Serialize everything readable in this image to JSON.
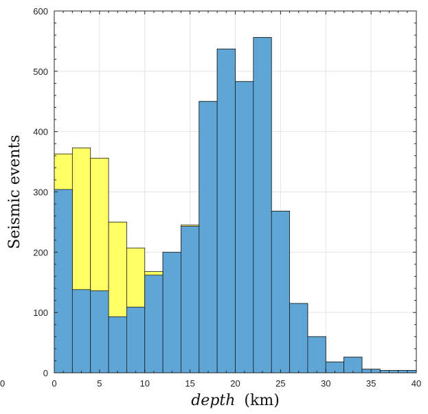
{
  "chart_data": {
    "type": "bar",
    "subtype": "overlaid-histogram",
    "title": "",
    "xlabel_italic": "depth",
    "xlabel_unit": "(km)",
    "ylabel": "Seismic events",
    "xlim": [
      0,
      40
    ],
    "ylim": [
      0,
      600
    ],
    "xticks": [
      0,
      5,
      10,
      15,
      20,
      25,
      30,
      35,
      40
    ],
    "yticks": [
      0,
      100,
      200,
      300,
      400,
      500,
      600
    ],
    "stray_tick_label": "0",
    "grid": true,
    "bin_edges": [
      0,
      2,
      4,
      6,
      8,
      10,
      12,
      14,
      16,
      18,
      20,
      22,
      24,
      26,
      28,
      30,
      32,
      34,
      36,
      38,
      40
    ],
    "series": [
      {
        "color": "#ffff66",
        "values": [
          363,
          373,
          356,
          250,
          207,
          168,
          200,
          245,
          450,
          537,
          483,
          556,
          268,
          115,
          60,
          18,
          26,
          6,
          4,
          4
        ]
      },
      {
        "color": "#5fa6d6",
        "values": [
          304,
          138,
          136,
          93,
          109,
          162,
          200,
          243,
          450,
          537,
          483,
          556,
          268,
          115,
          60,
          18,
          26,
          6,
          4,
          4
        ]
      }
    ]
  }
}
